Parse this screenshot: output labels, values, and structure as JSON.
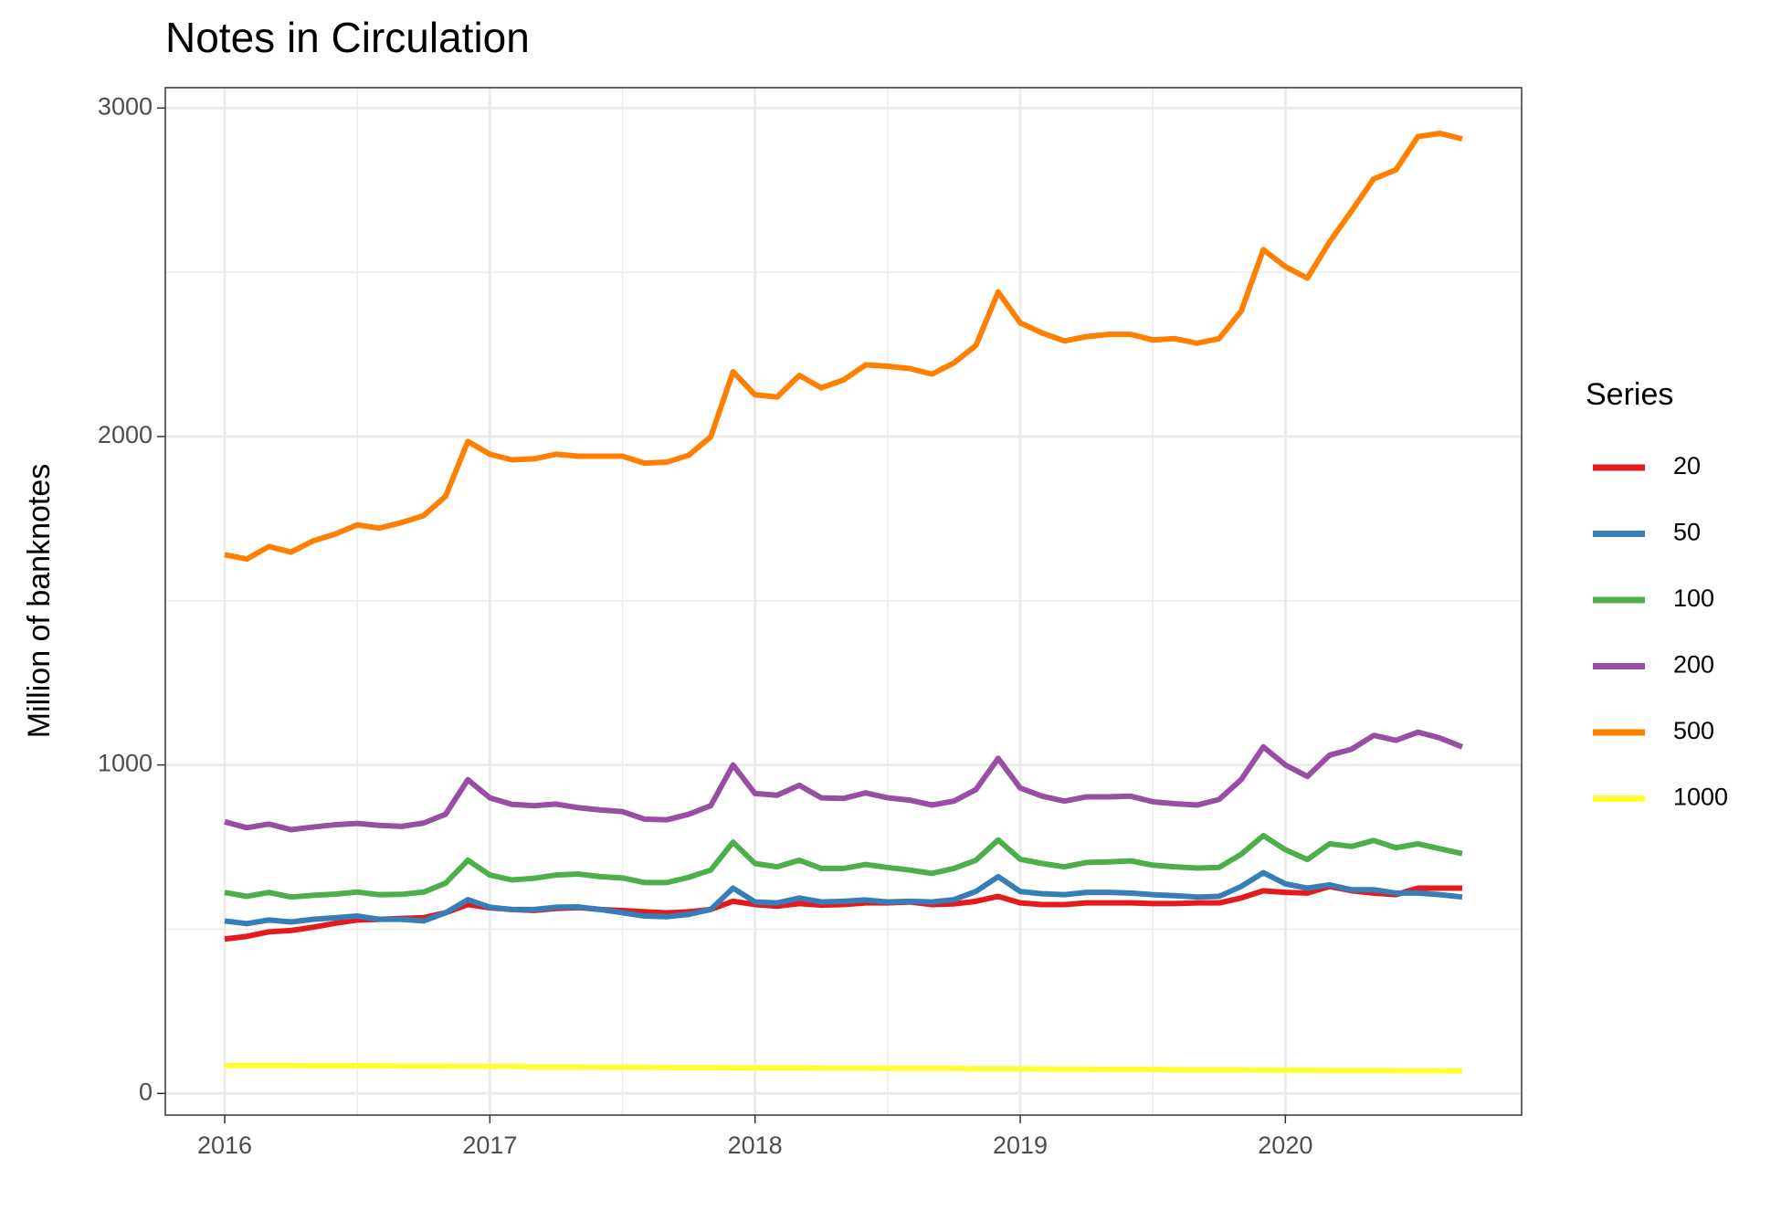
{
  "chart_data": {
    "type": "line",
    "title": "Notes in Circulation",
    "y_label": "Million of banknotes",
    "legend_title": "Series",
    "grid": true,
    "xlim": [
      2015.776,
      2020.891
    ],
    "xticks": [
      2016,
      2017,
      2018,
      2019,
      2020
    ],
    "ylim": [
      -66,
      3062
    ],
    "yticks": [
      0,
      1000,
      2000,
      3000
    ],
    "x": [
      2016,
      2016.083,
      2016.167,
      2016.25,
      2016.333,
      2016.417,
      2016.5,
      2016.583,
      2016.667,
      2016.75,
      2016.833,
      2016.917,
      2017,
      2017.083,
      2017.167,
      2017.25,
      2017.333,
      2017.417,
      2017.5,
      2017.583,
      2017.667,
      2017.75,
      2017.833,
      2017.917,
      2018,
      2018.083,
      2018.167,
      2018.25,
      2018.333,
      2018.417,
      2018.5,
      2018.583,
      2018.667,
      2018.75,
      2018.833,
      2018.917,
      2019,
      2019.083,
      2019.167,
      2019.25,
      2019.333,
      2019.417,
      2019.5,
      2019.583,
      2019.667,
      2019.75,
      2019.833,
      2019.917,
      2020,
      2020.083,
      2020.167,
      2020.25,
      2020.333,
      2020.417,
      2020.5,
      2020.583,
      2020.667
    ],
    "series": [
      {
        "name": "20",
        "color": "#e41a1c",
        "values": [
          470,
          478,
          492,
          496,
          506,
          518,
          528,
          530,
          533,
          535,
          550,
          575,
          565,
          560,
          557,
          563,
          566,
          560,
          557,
          553,
          550,
          553,
          560,
          585,
          575,
          570,
          578,
          573,
          575,
          580,
          580,
          583,
          575,
          577,
          585,
          600,
          580,
          575,
          575,
          580,
          580,
          580,
          578,
          578,
          580,
          580,
          595,
          617,
          612,
          610,
          630,
          617,
          610,
          605,
          625,
          625,
          625
        ]
      },
      {
        "name": "50",
        "color": "#377eb8",
        "values": [
          525,
          517,
          528,
          522,
          530,
          535,
          540,
          530,
          530,
          525,
          550,
          590,
          567,
          560,
          560,
          567,
          568,
          560,
          550,
          540,
          538,
          545,
          560,
          625,
          583,
          580,
          595,
          583,
          585,
          589,
          583,
          585,
          583,
          590,
          615,
          660,
          615,
          608,
          605,
          612,
          612,
          610,
          605,
          602,
          598,
          600,
          630,
          672,
          638,
          625,
          635,
          620,
          620,
          610,
          610,
          605,
          598
        ]
      },
      {
        "name": "100",
        "color": "#4daf4a",
        "values": [
          612,
          600,
          612,
          598,
          603,
          607,
          613,
          605,
          606,
          613,
          640,
          710,
          665,
          650,
          655,
          665,
          668,
          660,
          656,
          642,
          642,
          658,
          680,
          765,
          700,
          690,
          710,
          685,
          685,
          697,
          688,
          680,
          670,
          685,
          710,
          772,
          713,
          700,
          690,
          703,
          705,
          708,
          695,
          690,
          686,
          688,
          728,
          785,
          742,
          712,
          760,
          752,
          770,
          748,
          760,
          745,
          730
        ]
      },
      {
        "name": "200",
        "color": "#984ea3",
        "values": [
          827,
          809,
          820,
          803,
          811,
          818,
          822,
          816,
          813,
          823,
          850,
          955,
          900,
          880,
          876,
          881,
          870,
          863,
          858,
          835,
          833,
          850,
          876,
          1000,
          913,
          908,
          938,
          900,
          898,
          915,
          900,
          893,
          878,
          890,
          925,
          1020,
          930,
          905,
          890,
          903,
          903,
          905,
          888,
          882,
          878,
          895,
          955,
          1055,
          1000,
          965,
          1030,
          1048,
          1090,
          1075,
          1100,
          1082,
          1055
        ]
      },
      {
        "name": "500",
        "color": "#ff7f00",
        "values": [
          1640,
          1627,
          1665,
          1648,
          1682,
          1703,
          1731,
          1721,
          1738,
          1759,
          1818,
          1985,
          1946,
          1929,
          1932,
          1946,
          1940,
          1940,
          1940,
          1919,
          1922,
          1943,
          1999,
          2197,
          2127,
          2120,
          2186,
          2148,
          2172,
          2218,
          2214,
          2207,
          2190,
          2224,
          2277,
          2440,
          2346,
          2315,
          2291,
          2304,
          2311,
          2311,
          2294,
          2298,
          2284,
          2298,
          2381,
          2569,
          2517,
          2482,
          2593,
          2687,
          2784,
          2812,
          2913,
          2923,
          2906
        ]
      },
      {
        "name": "1000",
        "color": "#ffff33",
        "values": [
          85,
          85,
          85,
          85,
          84,
          84,
          84,
          84,
          83,
          83,
          83,
          82,
          82,
          82,
          81,
          81,
          81,
          80,
          80,
          80,
          79,
          79,
          79,
          78,
          78,
          78,
          78,
          77,
          77,
          77,
          76,
          76,
          76,
          76,
          75,
          75,
          75,
          74,
          74,
          74,
          73,
          73,
          73,
          72,
          72,
          72,
          72,
          71,
          71,
          71,
          70,
          70,
          70,
          69,
          69,
          69,
          68
        ]
      }
    ]
  }
}
